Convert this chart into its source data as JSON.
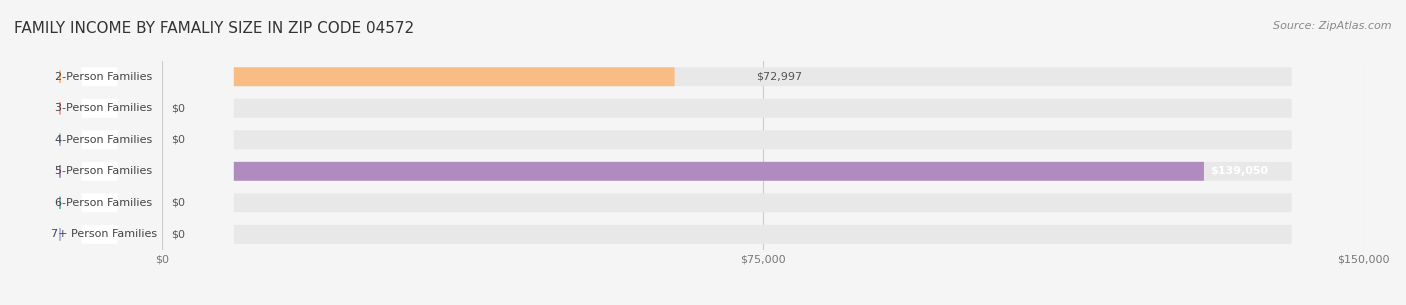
{
  "title": "FAMILY INCOME BY FAMALIY SIZE IN ZIP CODE 04572",
  "source": "Source: ZipAtlas.com",
  "categories": [
    "2-Person Families",
    "3-Person Families",
    "4-Person Families",
    "5-Person Families",
    "6-Person Families",
    "7+ Person Families"
  ],
  "values": [
    72997,
    0,
    0,
    139050,
    0,
    0
  ],
  "bar_colors": [
    "#f9bc84",
    "#f4a0a0",
    "#a8c0e0",
    "#b08bbf",
    "#6dbfbf",
    "#b0b8e8"
  ],
  "value_labels": [
    "$72,997",
    "$0",
    "$0",
    "$139,050",
    "$0",
    "$0"
  ],
  "xlim": [
    0,
    150000
  ],
  "xticks": [
    0,
    75000,
    150000
  ],
  "xtick_labels": [
    "$0",
    "$75,000",
    "$150,000"
  ],
  "background_color": "#f5f5f5",
  "bar_bg_color": "#e8e8e8",
  "title_fontsize": 11,
  "source_fontsize": 8,
  "label_fontsize": 8,
  "value_fontsize": 8
}
